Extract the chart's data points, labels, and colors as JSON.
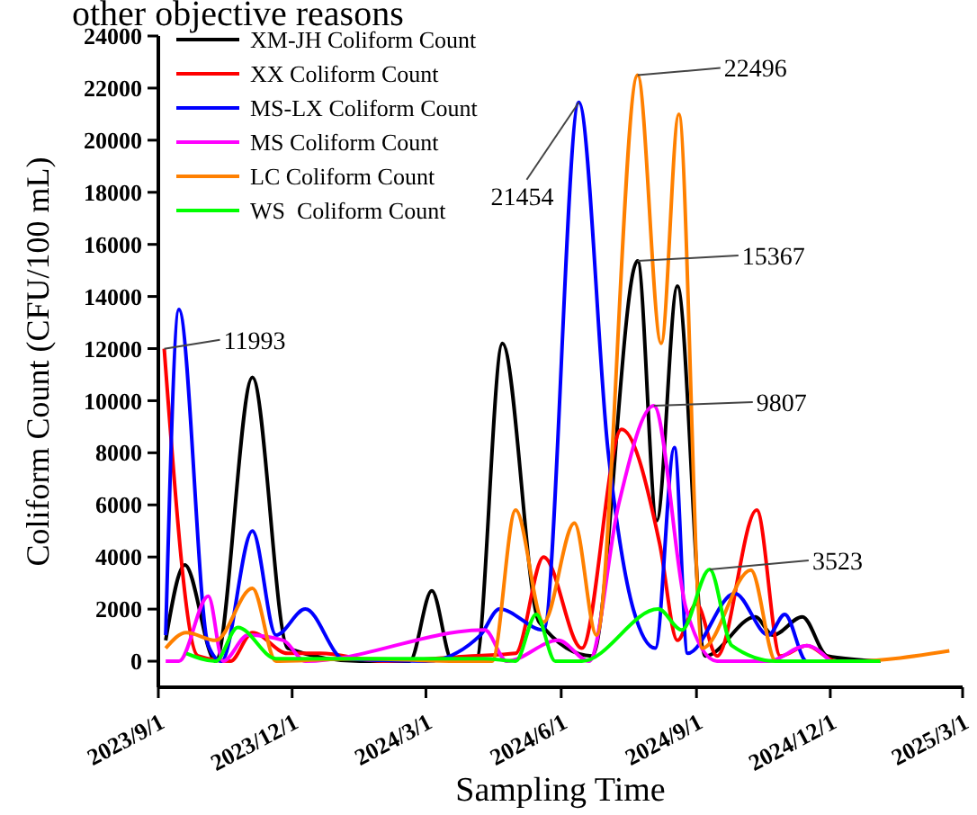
{
  "chart_data": {
    "type": "line",
    "xlabel": "Sampling Time",
    "ylabel": "Coliform Count  (CFU/100 mL)",
    "xlim": [
      "2023-09-01",
      "2025-03-01"
    ],
    "xticks": [
      {
        "value": "2023-09-01",
        "label": "2023/9/1"
      },
      {
        "value": "2023-12-01",
        "label": "2023/12/1"
      },
      {
        "value": "2024-03-01",
        "label": "2024/3/1"
      },
      {
        "value": "2024-06-01",
        "label": "2024/6/1"
      },
      {
        "value": "2024-09-01",
        "label": "2024/9/1"
      },
      {
        "value": "2024-12-01",
        "label": "2024/12/1"
      },
      {
        "value": "2025-03-01",
        "label": "2025/3/1"
      }
    ],
    "ylim": [
      -1000,
      24000
    ],
    "yticks": [
      0,
      2000,
      4000,
      6000,
      8000,
      10000,
      12000,
      14000,
      16000,
      18000,
      20000,
      22000,
      24000
    ],
    "grid": false,
    "legend": "top left",
    "marker": "none",
    "line_style": "solid",
    "series": [
      {
        "name": "XM-JH Coliform Count",
        "color": "#000000",
        "x": [
          "2023-09-06",
          "2023-09-19",
          "2023-10-10",
          "2023-11-04",
          "2023-11-28",
          "2024-01-16",
          "2024-02-19",
          "2024-03-05",
          "2024-03-19",
          "2024-04-04",
          "2024-04-22",
          "2024-05-17",
          "2024-06-22",
          "2024-07-23",
          "2024-08-05",
          "2024-08-19",
          "2024-09-07",
          "2024-10-11",
          "2024-10-23",
          "2024-11-12",
          "2024-11-29",
          "2025-01-04"
        ],
        "values": [
          800,
          3700,
          0,
          10900,
          500,
          0,
          0,
          2700,
          0,
          0,
          12200,
          1500,
          200,
          15367,
          5400,
          14400,
          200,
          1700,
          1000,
          1700,
          200,
          0
        ]
      },
      {
        "name": "XX Coliform Count",
        "color": "#ff0000",
        "x": [
          "2023-09-05",
          "2023-09-28",
          "2023-10-20",
          "2023-11-04",
          "2023-11-28",
          "2023-12-20",
          "2024-02-01",
          "2024-04-01",
          "2024-05-01",
          "2024-05-20",
          "2024-06-15",
          "2024-07-12",
          "2024-08-07",
          "2024-08-19",
          "2024-09-01",
          "2024-09-15",
          "2024-10-12",
          "2024-10-28",
          "2024-11-15",
          "2024-12-05",
          "2025-01-04"
        ],
        "values": [
          11993,
          200,
          0,
          1100,
          300,
          300,
          0,
          200,
          300,
          4000,
          500,
          8900,
          4500,
          800,
          2200,
          200,
          5800,
          200,
          600,
          0,
          0
        ]
      },
      {
        "name": "MS-LX Coliform Count",
        "color": "#0000ff",
        "x": [
          "2023-09-06",
          "2023-09-15",
          "2023-10-05",
          "2023-10-14",
          "2023-11-04",
          "2023-11-20",
          "2023-12-10",
          "2024-01-05",
          "2024-03-01",
          "2024-04-07",
          "2024-04-20",
          "2024-05-20",
          "2024-06-13",
          "2024-07-03",
          "2024-07-20",
          "2024-08-04",
          "2024-08-17",
          "2024-08-26",
          "2024-09-27",
          "2024-10-20",
          "2024-10-31",
          "2024-11-15",
          "2025-01-04"
        ],
        "values": [
          1000,
          13500,
          600,
          0,
          5000,
          1000,
          2000,
          100,
          0,
          1000,
          2000,
          1200,
          21454,
          8000,
          2000,
          500,
          8200,
          300,
          2600,
          1000,
          1800,
          0,
          0
        ]
      },
      {
        "name": "MS Coliform Count",
        "color": "#ff00ff",
        "x": [
          "2023-09-06",
          "2023-09-15",
          "2023-10-05",
          "2023-10-15",
          "2023-11-01",
          "2023-11-25",
          "2023-12-10",
          "2024-04-10",
          "2024-04-25",
          "2024-05-30",
          "2024-06-20",
          "2024-07-10",
          "2024-08-03",
          "2024-08-25",
          "2024-09-15",
          "2024-10-20",
          "2024-11-15",
          "2024-12-01"
        ],
        "values": [
          0,
          0,
          2500,
          0,
          1000,
          800,
          0,
          1200,
          0,
          800,
          0,
          6000,
          9807,
          2000,
          0,
          0,
          600,
          0
        ]
      },
      {
        "name": "LC Coliform Count",
        "color": "#ff8000",
        "x": [
          "2023-09-06",
          "2023-09-20",
          "2023-10-10",
          "2023-11-04",
          "2023-11-20",
          "2024-01-15",
          "2024-03-20",
          "2024-04-15",
          "2024-05-01",
          "2024-05-20",
          "2024-06-10",
          "2024-06-25",
          "2024-07-23",
          "2024-08-08",
          "2024-08-20",
          "2024-09-05",
          "2024-10-08",
          "2024-10-25",
          "2024-12-15",
          "2025-02-20"
        ],
        "values": [
          500,
          1100,
          800,
          2800,
          0,
          100,
          0,
          0,
          5800,
          1500,
          5300,
          1000,
          22496,
          12200,
          21000,
          500,
          3500,
          0,
          0,
          400
        ]
      },
      {
        "name": "WS  Coliform Count",
        "color": "#00ff00",
        "x": [
          "2023-09-20",
          "2023-10-10",
          "2023-10-25",
          "2023-11-20",
          "2024-04-10",
          "2024-05-01",
          "2024-05-15",
          "2024-05-28",
          "2024-06-15",
          "2024-08-06",
          "2024-08-22",
          "2024-09-10",
          "2024-09-25",
          "2024-10-25",
          "2025-01-04"
        ],
        "values": [
          300,
          0,
          1300,
          100,
          100,
          0,
          1800,
          0,
          0,
          2000,
          1200,
          3523,
          600,
          0,
          0
        ]
      }
    ],
    "annotations": [
      "other objective reasons",
      {
        "text": "11993",
        "x": "2023-09-05",
        "y": 11993
      },
      {
        "text": "21454",
        "x": "2024-06-13",
        "y": 21454
      },
      {
        "text": "22496",
        "x": "2024-07-23",
        "y": 22496
      },
      {
        "text": "15367",
        "x": "2024-07-23",
        "y": 15367
      },
      {
        "text": "9807",
        "x": "2024-08-03",
        "y": 9807
      },
      {
        "text": "3523",
        "x": "2024-09-10",
        "y": 3523
      }
    ]
  }
}
